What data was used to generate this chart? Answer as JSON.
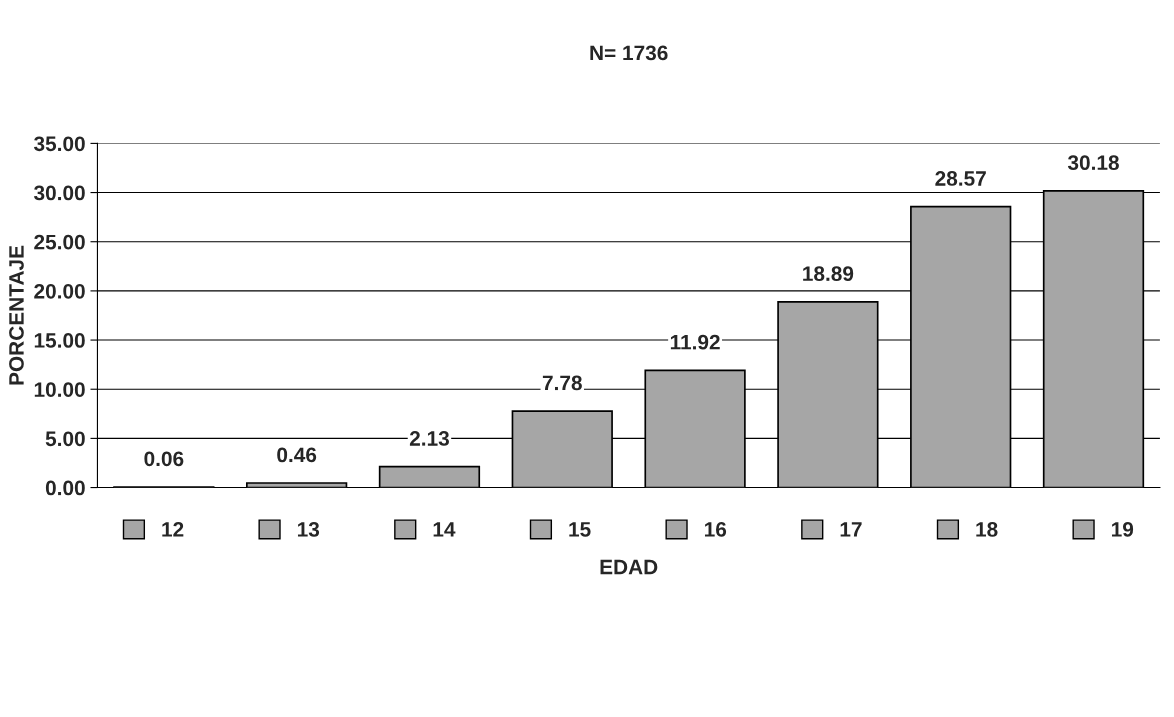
{
  "chart_data": {
    "type": "bar",
    "title": "N= 1736",
    "xlabel": "EDAD",
    "ylabel": "PORCENTAJE",
    "categories": [
      null
    ],
    "series": [
      {
        "name": "12",
        "color": "#a6a6a6",
        "values": [
          0.06
        ]
      },
      {
        "name": "13",
        "color": "#a6a6a6",
        "values": [
          0.46
        ]
      },
      {
        "name": "14",
        "color": "#a6a6a6",
        "values": [
          2.13
        ]
      },
      {
        "name": "15",
        "color": "#a6a6a6",
        "values": [
          7.78
        ]
      },
      {
        "name": "16",
        "color": "#a6a6a6",
        "values": [
          11.92
        ]
      },
      {
        "name": "17",
        "color": "#a6a6a6",
        "values": [
          18.89
        ]
      },
      {
        "name": "18",
        "color": "#a6a6a6",
        "values": [
          28.57
        ]
      },
      {
        "name": "19",
        "color": "#a6a6a6",
        "values": [
          30.18
        ]
      }
    ],
    "ylim": [
      0,
      35
    ],
    "yticks": [
      {
        "value": 0,
        "label": "0.00"
      },
      {
        "value": 5,
        "label": "5.00"
      },
      {
        "value": 10,
        "label": "10.00"
      },
      {
        "value": 15,
        "label": "15.00"
      },
      {
        "value": 20,
        "label": "20.00"
      },
      {
        "value": 25,
        "label": "25.00"
      },
      {
        "value": 30,
        "label": "30.00"
      },
      {
        "value": 35,
        "label": "35.00"
      }
    ],
    "grid": "y",
    "legend": "bottom",
    "data_labels": true
  }
}
